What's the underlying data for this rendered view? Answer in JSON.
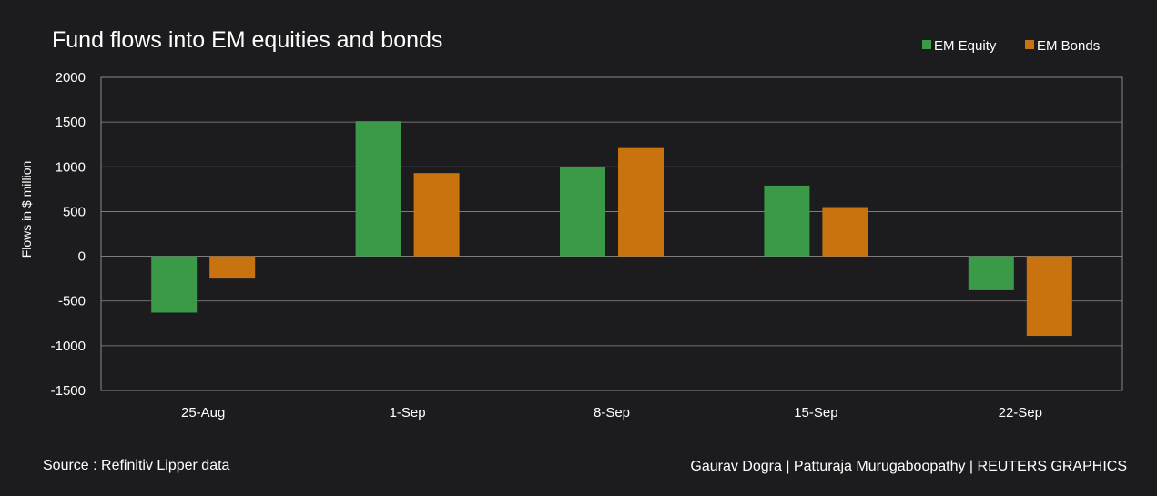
{
  "chart_data": {
    "type": "bar",
    "title": "Fund flows into EM equities and bonds",
    "xlabel": "",
    "ylabel": "Flows in $ million",
    "categories": [
      "25-Aug",
      "1-Sep",
      "8-Sep",
      "15-Sep",
      "22-Sep"
    ],
    "series": [
      {
        "name": "EM Equity",
        "color": "#3a9a48",
        "values": [
          -630,
          1510,
          1000,
          790,
          -380
        ]
      },
      {
        "name": "EM Bonds",
        "color": "#c8730f",
        "values": [
          -250,
          930,
          1210,
          550,
          -890
        ]
      }
    ],
    "ylim": [
      -1500,
      2000
    ],
    "yticks": [
      2000,
      1500,
      1000,
      500,
      0,
      -500,
      -1000,
      -1500
    ],
    "grid": true,
    "legend_position": "top-right"
  },
  "footer": {
    "source": "Source : Refinitiv Lipper data",
    "credits": "Gaurav Dogra | Patturaja Murugaboopathy | REUTERS GRAPHICS"
  }
}
